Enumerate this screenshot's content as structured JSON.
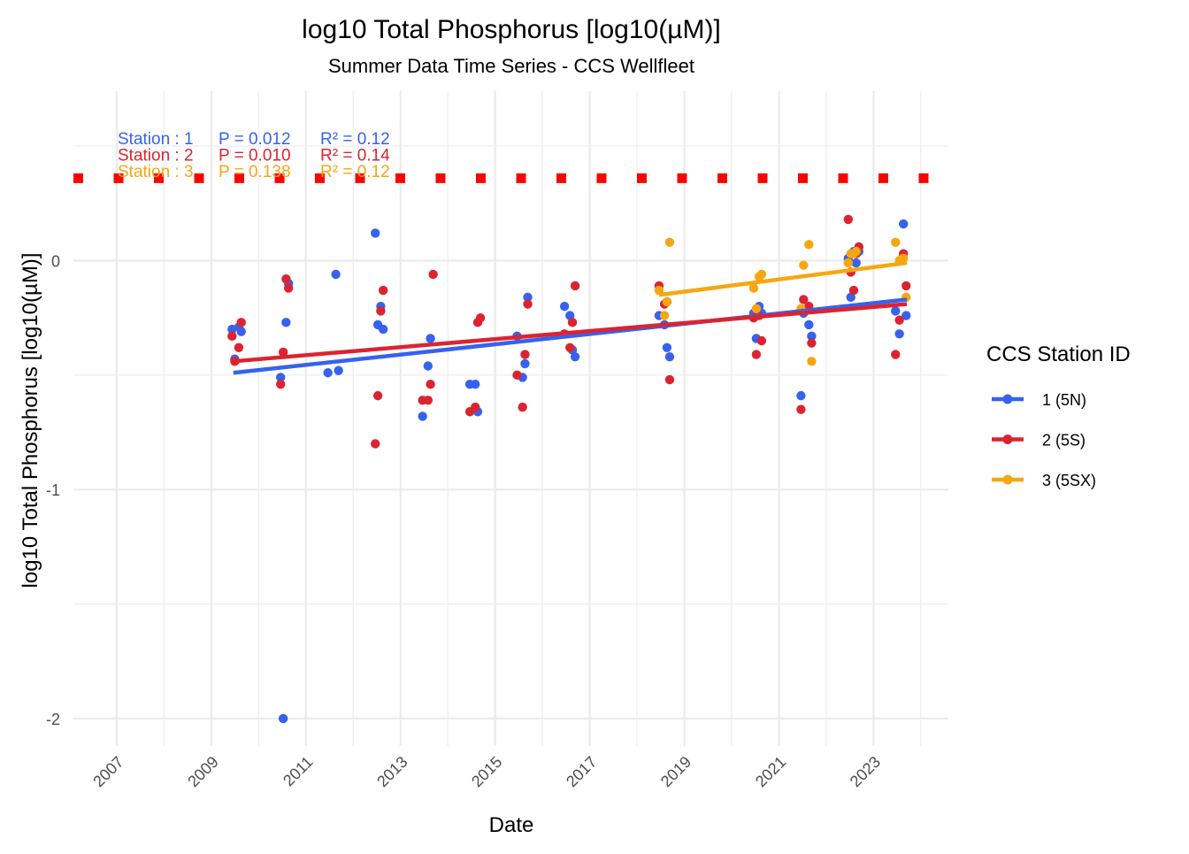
{
  "chart_data": {
    "type": "scatter",
    "title": "log10 Total Phosphorus [log10(µM)]",
    "subtitle": "Summer Data Time Series - CCS Wellfleet",
    "xlabel": "Date",
    "ylabel": "log10 Total Phosphorus [log10(µM)]",
    "x_axis": {
      "type": "date",
      "range": [
        "2006-02-01",
        "2024-08-01"
      ],
      "ticks": [
        "2007",
        "2009",
        "2011",
        "2013",
        "2015",
        "2017",
        "2019",
        "2021",
        "2023"
      ],
      "tick_rotation": "45deg"
    },
    "y_axis": {
      "range": [
        -2.12,
        0.74
      ],
      "ticks": [
        "-2",
        "-1",
        "0"
      ],
      "tick_values": [
        -2,
        -1,
        0
      ]
    },
    "grid": true,
    "theme": "minimal",
    "threshold_line": {
      "y": 0.36,
      "style": "dotted",
      "color": "#ff0000"
    },
    "legend": {
      "title": "CCS Station ID",
      "placement": "right",
      "entries": [
        "1 (5N)",
        "2 (5S)",
        "3 (5SX)"
      ]
    },
    "annotations": [
      {
        "station_label": "Station : 1",
        "p_label": "P = 0.012",
        "r2_label": "R² = 0.12",
        "color": "#3662ee"
      },
      {
        "station_label": "Station : 2",
        "p_label": "P = 0.010",
        "r2_label": "R² = 0.14",
        "color": "#dc2430"
      },
      {
        "station_label": "Station : 3",
        "p_label": "P = 0.138",
        "r2_label": "R² = 0.12",
        "color": "#f5a712"
      }
    ],
    "series": [
      {
        "name": "1 (5N)",
        "color": "#3662ee",
        "trend": {
          "x": [
            "2009-06-20",
            "2023-09-15"
          ],
          "y": [
            -0.49,
            -0.17
          ]
        },
        "points": [
          {
            "x": "2009-06-10",
            "y": -0.3
          },
          {
            "x": "2009-07-01",
            "y": -0.43
          },
          {
            "x": "2009-08-01",
            "y": -0.29
          },
          {
            "x": "2009-08-20",
            "y": -0.31
          },
          {
            "x": "2010-06-20",
            "y": -0.51
          },
          {
            "x": "2010-07-10",
            "y": -2.0
          },
          {
            "x": "2010-08-01",
            "y": -0.27
          },
          {
            "x": "2010-08-20",
            "y": -0.1
          },
          {
            "x": "2011-06-20",
            "y": -0.49
          },
          {
            "x": "2011-08-20",
            "y": -0.06
          },
          {
            "x": "2011-09-10",
            "y": -0.48
          },
          {
            "x": "2012-06-20",
            "y": 0.12
          },
          {
            "x": "2012-07-10",
            "y": -0.28
          },
          {
            "x": "2012-08-01",
            "y": -0.2
          },
          {
            "x": "2012-08-20",
            "y": -0.3
          },
          {
            "x": "2013-06-20",
            "y": -0.68
          },
          {
            "x": "2013-08-01",
            "y": -0.46
          },
          {
            "x": "2013-08-20",
            "y": -0.34
          },
          {
            "x": "2014-06-20",
            "y": -0.54
          },
          {
            "x": "2014-08-01",
            "y": -0.54
          },
          {
            "x": "2014-08-20",
            "y": -0.66
          },
          {
            "x": "2015-06-20",
            "y": -0.33
          },
          {
            "x": "2015-08-01",
            "y": -0.51
          },
          {
            "x": "2015-08-20",
            "y": -0.45
          },
          {
            "x": "2015-09-10",
            "y": -0.16
          },
          {
            "x": "2016-06-20",
            "y": -0.2
          },
          {
            "x": "2016-08-01",
            "y": -0.24
          },
          {
            "x": "2016-08-20",
            "y": -0.39
          },
          {
            "x": "2016-09-10",
            "y": -0.42
          },
          {
            "x": "2018-06-20",
            "y": -0.24
          },
          {
            "x": "2018-08-01",
            "y": -0.28
          },
          {
            "x": "2018-08-20",
            "y": -0.38
          },
          {
            "x": "2018-09-10",
            "y": -0.42
          },
          {
            "x": "2020-06-20",
            "y": -0.23
          },
          {
            "x": "2020-07-10",
            "y": -0.34
          },
          {
            "x": "2020-08-01",
            "y": -0.2
          },
          {
            "x": "2020-08-20",
            "y": -0.23
          },
          {
            "x": "2021-06-20",
            "y": -0.59
          },
          {
            "x": "2021-07-10",
            "y": -0.23
          },
          {
            "x": "2021-08-20",
            "y": -0.28
          },
          {
            "x": "2021-09-10",
            "y": -0.33
          },
          {
            "x": "2022-06-20",
            "y": 0.01
          },
          {
            "x": "2022-07-10",
            "y": -0.16
          },
          {
            "x": "2022-08-01",
            "y": 0.04
          },
          {
            "x": "2022-08-20",
            "y": -0.01
          },
          {
            "x": "2022-09-10",
            "y": 0.04
          },
          {
            "x": "2023-06-20",
            "y": -0.22
          },
          {
            "x": "2023-07-20",
            "y": -0.32
          },
          {
            "x": "2023-08-20",
            "y": 0.16
          },
          {
            "x": "2023-09-10",
            "y": -0.24
          }
        ]
      },
      {
        "name": "2 (5S)",
        "color": "#dc2430",
        "trend": {
          "x": [
            "2009-06-20",
            "2023-09-15"
          ],
          "y": [
            -0.44,
            -0.19
          ]
        },
        "points": [
          {
            "x": "2009-06-10",
            "y": -0.33
          },
          {
            "x": "2009-07-01",
            "y": -0.44
          },
          {
            "x": "2009-08-01",
            "y": -0.38
          },
          {
            "x": "2009-08-20",
            "y": -0.27
          },
          {
            "x": "2010-06-20",
            "y": -0.54
          },
          {
            "x": "2010-07-10",
            "y": -0.4
          },
          {
            "x": "2010-08-01",
            "y": -0.08
          },
          {
            "x": "2010-08-20",
            "y": -0.12
          },
          {
            "x": "2012-06-20",
            "y": -0.8
          },
          {
            "x": "2012-07-10",
            "y": -0.59
          },
          {
            "x": "2012-08-01",
            "y": -0.22
          },
          {
            "x": "2012-08-20",
            "y": -0.13
          },
          {
            "x": "2013-06-20",
            "y": -0.61
          },
          {
            "x": "2013-08-01",
            "y": -0.61
          },
          {
            "x": "2013-08-20",
            "y": -0.54
          },
          {
            "x": "2013-09-10",
            "y": -0.06
          },
          {
            "x": "2014-06-20",
            "y": -0.66
          },
          {
            "x": "2014-08-01",
            "y": -0.64
          },
          {
            "x": "2014-08-20",
            "y": -0.27
          },
          {
            "x": "2014-09-10",
            "y": -0.25
          },
          {
            "x": "2015-06-20",
            "y": -0.5
          },
          {
            "x": "2015-08-01",
            "y": -0.64
          },
          {
            "x": "2015-08-20",
            "y": -0.41
          },
          {
            "x": "2015-09-10",
            "y": -0.19
          },
          {
            "x": "2016-06-20",
            "y": -0.32
          },
          {
            "x": "2016-08-01",
            "y": -0.38
          },
          {
            "x": "2016-08-20",
            "y": -0.27
          },
          {
            "x": "2016-09-10",
            "y": -0.11
          },
          {
            "x": "2018-06-20",
            "y": -0.11
          },
          {
            "x": "2018-08-01",
            "y": -0.19
          },
          {
            "x": "2018-08-20",
            "y": -0.18
          },
          {
            "x": "2018-09-10",
            "y": -0.52
          },
          {
            "x": "2020-06-20",
            "y": -0.25
          },
          {
            "x": "2020-07-10",
            "y": -0.41
          },
          {
            "x": "2020-08-01",
            "y": -0.24
          },
          {
            "x": "2020-08-20",
            "y": -0.35
          },
          {
            "x": "2021-06-20",
            "y": -0.65
          },
          {
            "x": "2021-07-10",
            "y": -0.17
          },
          {
            "x": "2021-08-20",
            "y": -0.2
          },
          {
            "x": "2021-09-10",
            "y": -0.36
          },
          {
            "x": "2022-06-20",
            "y": 0.18
          },
          {
            "x": "2022-07-10",
            "y": -0.05
          },
          {
            "x": "2022-08-01",
            "y": -0.13
          },
          {
            "x": "2022-08-20",
            "y": 0.03
          },
          {
            "x": "2022-09-10",
            "y": 0.06
          },
          {
            "x": "2023-06-20",
            "y": -0.41
          },
          {
            "x": "2023-07-20",
            "y": -0.26
          },
          {
            "x": "2023-08-20",
            "y": 0.03
          },
          {
            "x": "2023-09-10",
            "y": -0.11
          }
        ]
      },
      {
        "name": "3 (5SX)",
        "color": "#f5a712",
        "trend": {
          "x": [
            "2018-06-20",
            "2023-09-15"
          ],
          "y": [
            -0.15,
            -0.01
          ]
        },
        "points": [
          {
            "x": "2018-06-20",
            "y": -0.13
          },
          {
            "x": "2018-08-01",
            "y": -0.24
          },
          {
            "x": "2018-08-20",
            "y": -0.18
          },
          {
            "x": "2018-09-10",
            "y": 0.08
          },
          {
            "x": "2020-06-20",
            "y": -0.12
          },
          {
            "x": "2020-07-10",
            "y": -0.21
          },
          {
            "x": "2020-08-01",
            "y": -0.07
          },
          {
            "x": "2020-08-20",
            "y": -0.06
          },
          {
            "x": "2021-06-20",
            "y": -0.21
          },
          {
            "x": "2021-07-10",
            "y": -0.02
          },
          {
            "x": "2021-08-20",
            "y": 0.07
          },
          {
            "x": "2021-09-10",
            "y": -0.44
          },
          {
            "x": "2022-06-20",
            "y": -0.01
          },
          {
            "x": "2022-07-10",
            "y": 0.03
          },
          {
            "x": "2022-08-01",
            "y": 0.03
          },
          {
            "x": "2022-08-20",
            "y": 0.04
          },
          {
            "x": "2023-06-20",
            "y": 0.08
          },
          {
            "x": "2023-07-20",
            "y": 0.0
          },
          {
            "x": "2023-08-20",
            "y": 0.01
          },
          {
            "x": "2023-09-10",
            "y": -0.16
          }
        ]
      }
    ]
  }
}
